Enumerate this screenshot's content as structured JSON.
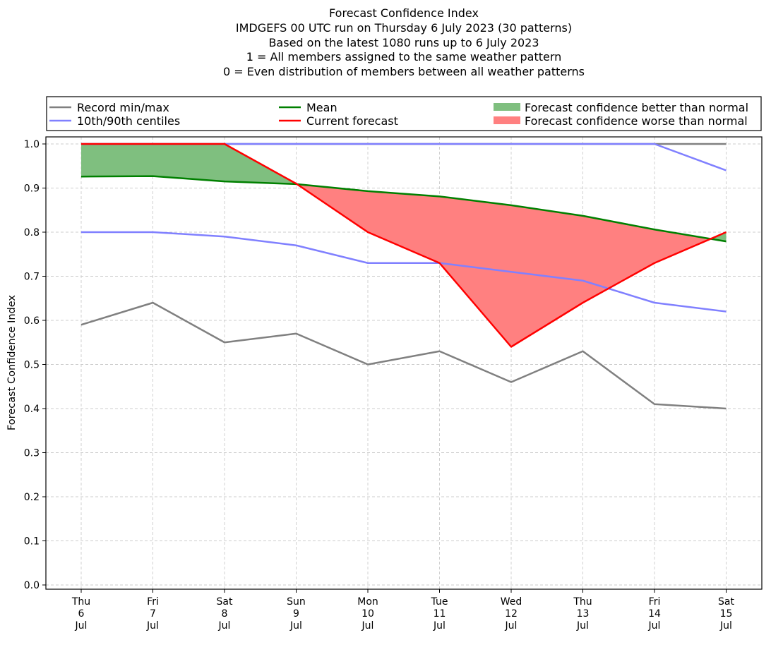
{
  "titles": [
    "Forecast Confidence Index",
    "IMDGEFS 00 UTC run on Thursday 6 July 2023 (30 patterns)",
    "Based on the latest 1080 runs up to 6 July 2023",
    "1 = All members assigned to the same weather pattern",
    "0 = Even distribution of members between all weather patterns"
  ],
  "legend": {
    "record": "Record min/max",
    "centiles": "10th/90th centiles",
    "mean": "Mean",
    "current": "Current forecast",
    "better": "Forecast confidence better than normal",
    "worse": "Forecast confidence worse than normal"
  },
  "colors": {
    "record": "#808080",
    "centiles": "#8080ff",
    "mean": "#008000",
    "current": "#ff0000",
    "better": "#7fbf7f",
    "worse": "#ff8080"
  },
  "chart_data": {
    "type": "line",
    "ylabel": "Forecast Confidence Index",
    "ylim": [
      0.0,
      1.0
    ],
    "yticks": [
      "0.0",
      "0.1",
      "0.2",
      "0.3",
      "0.4",
      "0.5",
      "0.6",
      "0.7",
      "0.8",
      "0.9",
      "1.0"
    ],
    "grid": true,
    "legend_position": "top",
    "categories": [
      [
        "Thu",
        "6",
        "Jul"
      ],
      [
        "Fri",
        "7",
        "Jul"
      ],
      [
        "Sat",
        "8",
        "Jul"
      ],
      [
        "Sun",
        "9",
        "Jul"
      ],
      [
        "Mon",
        "10",
        "Jul"
      ],
      [
        "Tue",
        "11",
        "Jul"
      ],
      [
        "Wed",
        "12",
        "Jul"
      ],
      [
        "Thu",
        "13",
        "Jul"
      ],
      [
        "Fri",
        "14",
        "Jul"
      ],
      [
        "Sat",
        "15",
        "Jul"
      ]
    ],
    "series": [
      {
        "name": "Record min/max",
        "key": "record_max",
        "values": [
          1.0,
          1.0,
          1.0,
          1.0,
          1.0,
          1.0,
          1.0,
          1.0,
          1.0,
          1.0
        ]
      },
      {
        "name": "Record min/max",
        "key": "record_min",
        "values": [
          0.59,
          0.64,
          0.55,
          0.57,
          0.5,
          0.53,
          0.46,
          0.53,
          0.41,
          0.4
        ]
      },
      {
        "name": "10th/90th centiles",
        "key": "p90",
        "values": [
          1.0,
          1.0,
          1.0,
          1.0,
          1.0,
          1.0,
          1.0,
          1.0,
          1.0,
          0.94
        ]
      },
      {
        "name": "10th/90th centiles",
        "key": "p10",
        "values": [
          0.8,
          0.8,
          0.79,
          0.77,
          0.73,
          0.73,
          0.71,
          0.69,
          0.64,
          0.62
        ]
      },
      {
        "name": "Mean",
        "key": "mean",
        "values": [
          0.926,
          0.927,
          0.915,
          0.909,
          0.893,
          0.881,
          0.861,
          0.837,
          0.806,
          0.779
        ]
      },
      {
        "name": "Current forecast",
        "key": "current",
        "values": [
          1.0,
          1.0,
          1.0,
          0.91,
          0.8,
          0.73,
          0.54,
          0.64,
          0.73,
          0.8
        ]
      }
    ]
  }
}
